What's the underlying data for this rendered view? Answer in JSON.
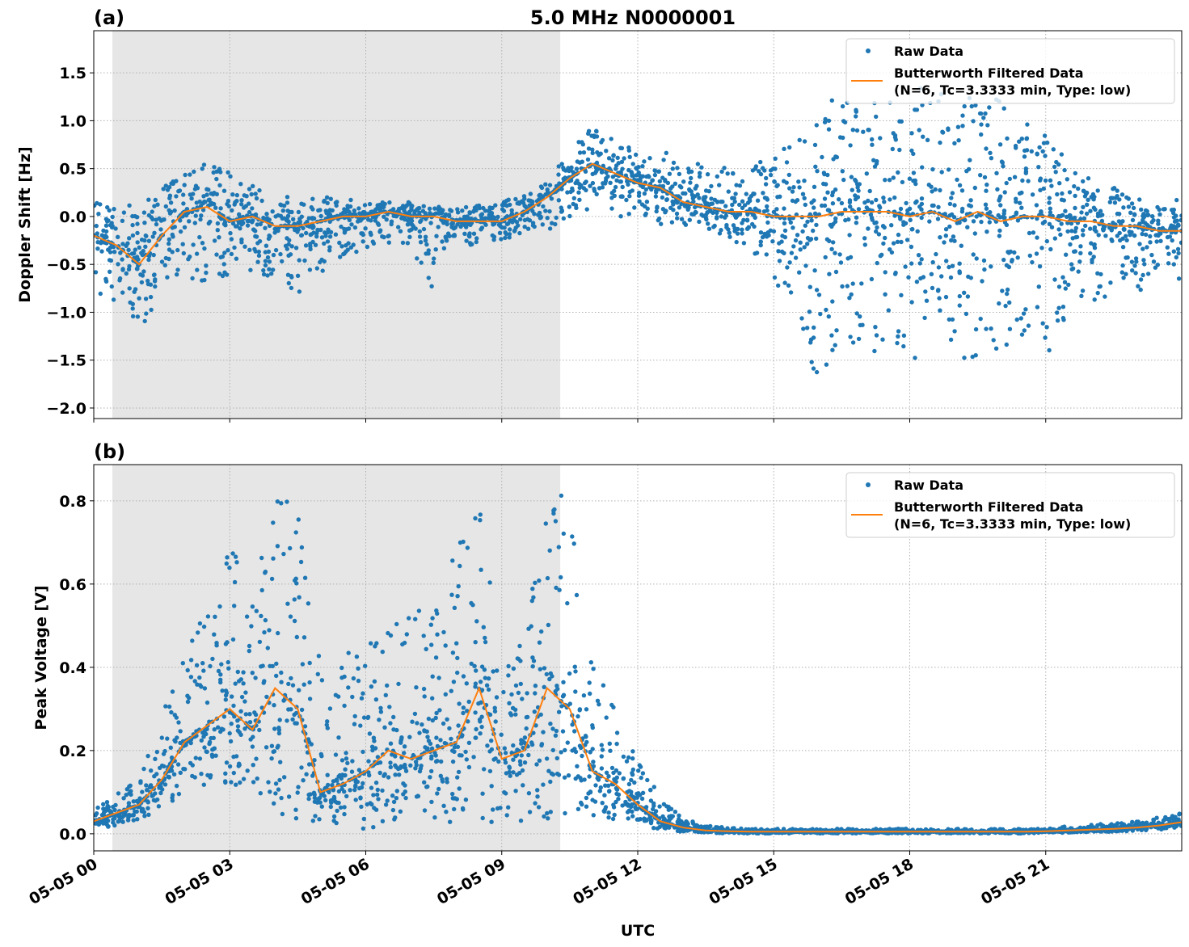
{
  "title": "5.0 MHz N0000001",
  "colors": {
    "raw": "#1f77b4",
    "filtered": "#ff7f0e",
    "shade": "#e6e6e6",
    "grid": "#b0b0b0"
  },
  "chart_data": [
    {
      "type": "scatter",
      "panel_label": "(a)",
      "ylabel": "Doppler Shift [Hz]",
      "xlabel": "",
      "xlim_hours": [
        0,
        24
      ],
      "ylim": [
        -2.11,
        1.94
      ],
      "yticks": [
        -2.0,
        -1.5,
        -1.0,
        -0.5,
        0.0,
        0.5,
        1.0,
        1.5
      ],
      "ytick_labels": [
        "−2.0",
        "−1.5",
        "−1.0",
        "−0.5",
        "0.0",
        "0.5",
        "1.0",
        "1.5"
      ],
      "grid": true,
      "shaded_interval_hours": [
        0.41,
        10.29
      ],
      "legend": {
        "placement": "top-right",
        "entries": [
          "Raw Data",
          "Butterworth Filtered Data",
          "(N=6, Tc=3.3333 min, Type: low)"
        ]
      },
      "x_hours": [
        0,
        0.5,
        1,
        1.5,
        2,
        2.5,
        3,
        3.5,
        4,
        4.5,
        5,
        5.5,
        6,
        6.5,
        7,
        7.5,
        8,
        8.5,
        9,
        9.5,
        10,
        10.5,
        11,
        11.5,
        12,
        12.5,
        13,
        13.5,
        14,
        14.5,
        15,
        15.5,
        16,
        16.5,
        17,
        17.5,
        18,
        18.5,
        19,
        19.5,
        20,
        20.5,
        21,
        21.5,
        22,
        22.5,
        23,
        23.5,
        24
      ],
      "series": [
        {
          "name": "Butterworth Filtered Data",
          "values": [
            -0.2,
            -0.3,
            -0.5,
            -0.2,
            0.05,
            0.1,
            -0.05,
            0.0,
            -0.1,
            -0.1,
            -0.05,
            0.0,
            0.0,
            0.05,
            0.0,
            0.0,
            -0.05,
            -0.05,
            -0.05,
            0.05,
            0.2,
            0.4,
            0.55,
            0.45,
            0.35,
            0.3,
            0.15,
            0.1,
            0.05,
            0.05,
            0.0,
            0.0,
            0.0,
            0.05,
            0.05,
            0.05,
            0.0,
            0.05,
            -0.05,
            0.05,
            -0.05,
            0.0,
            0.0,
            -0.05,
            -0.05,
            -0.1,
            -0.1,
            -0.15,
            -0.15
          ]
        },
        {
          "name": "Raw Data",
          "low": [
            -0.8,
            -0.9,
            -1.15,
            -0.95,
            -0.6,
            -0.8,
            -0.7,
            -0.6,
            -0.65,
            -0.8,
            -0.6,
            -0.4,
            -0.35,
            -0.3,
            -0.3,
            -0.85,
            -0.3,
            -0.3,
            -0.25,
            -0.2,
            -0.15,
            0.0,
            0.05,
            0.0,
            -0.05,
            -0.1,
            -0.1,
            -0.15,
            -0.2,
            -0.4,
            -0.7,
            -0.9,
            -1.9,
            -1.2,
            -1.5,
            -1.3,
            -1.5,
            -1.4,
            -1.5,
            -1.8,
            -1.4,
            -1.3,
            -1.5,
            -1.0,
            -0.9,
            -0.8,
            -0.8,
            -0.65,
            -0.65
          ],
          "high": [
            0.15,
            0.1,
            0.15,
            0.35,
            0.45,
            0.6,
            0.45,
            0.35,
            0.3,
            0.25,
            0.2,
            0.2,
            0.15,
            0.15,
            0.15,
            0.1,
            0.12,
            0.15,
            0.15,
            0.25,
            0.35,
            0.75,
            0.95,
            0.8,
            0.7,
            0.7,
            0.6,
            0.55,
            0.5,
            0.5,
            0.7,
            0.8,
            1.0,
            1.4,
            1.3,
            1.2,
            1.3,
            1.6,
            1.3,
            1.4,
            1.2,
            1.0,
            1.0,
            0.5,
            0.4,
            0.3,
            0.25,
            0.2,
            0.2
          ]
        }
      ]
    },
    {
      "type": "scatter",
      "panel_label": "(b)",
      "ylabel": "Peak Voltage [V]",
      "xlabel": "UTC",
      "xlim_hours": [
        0,
        24
      ],
      "ylim": [
        -0.041,
        0.887
      ],
      "yticks": [
        0.0,
        0.2,
        0.4,
        0.6,
        0.8
      ],
      "ytick_labels": [
        "0.0",
        "0.2",
        "0.4",
        "0.6",
        "0.8"
      ],
      "xticks_hours": [
        0,
        3,
        6,
        9,
        12,
        15,
        18,
        21
      ],
      "xtick_labels": [
        "05-05 00",
        "05-05 03",
        "05-05 06",
        "05-05 09",
        "05-05 12",
        "05-05 15",
        "05-05 18",
        "05-05 21"
      ],
      "grid": true,
      "shaded_interval_hours": [
        0.41,
        10.29
      ],
      "legend": {
        "placement": "top-right",
        "entries": [
          "Raw Data",
          "Butterworth Filtered Data",
          "(N=6, Tc=3.3333 min, Type: low)"
        ]
      },
      "x_hours": [
        0,
        0.5,
        1,
        1.5,
        2,
        2.5,
        3,
        3.5,
        4,
        4.5,
        5,
        5.5,
        6,
        6.5,
        7,
        7.5,
        8,
        8.5,
        9,
        9.5,
        10,
        10.5,
        11,
        11.5,
        12,
        12.5,
        13,
        13.5,
        14,
        14.5,
        15,
        15.5,
        16,
        16.5,
        17,
        17.5,
        18,
        18.5,
        19,
        19.5,
        20,
        20.5,
        21,
        21.5,
        22,
        22.5,
        23,
        23.5,
        24
      ],
      "series": [
        {
          "name": "Butterworth Filtered Data",
          "values": [
            0.03,
            0.05,
            0.07,
            0.13,
            0.22,
            0.26,
            0.3,
            0.25,
            0.35,
            0.3,
            0.1,
            0.12,
            0.15,
            0.2,
            0.18,
            0.2,
            0.22,
            0.35,
            0.18,
            0.2,
            0.35,
            0.3,
            0.15,
            0.12,
            0.07,
            0.03,
            0.015,
            0.008,
            0.006,
            0.005,
            0.005,
            0.005,
            0.005,
            0.005,
            0.005,
            0.005,
            0.005,
            0.005,
            0.005,
            0.005,
            0.005,
            0.005,
            0.006,
            0.008,
            0.01,
            0.012,
            0.015,
            0.02,
            0.028
          ]
        },
        {
          "name": "Raw Data",
          "low": [
            0.01,
            0.02,
            0.03,
            0.06,
            0.1,
            0.12,
            0.12,
            0.1,
            0.05,
            0.03,
            0.02,
            0.01,
            0.01,
            0.02,
            0.02,
            0.03,
            0.02,
            0.03,
            0.02,
            0.03,
            0.03,
            0.04,
            0.04,
            0.03,
            0.02,
            0.01,
            0.005,
            0.002,
            0.001,
            0.001,
            0.001,
            0.001,
            0.001,
            0.001,
            0.001,
            0.001,
            0.001,
            0.001,
            0.001,
            0.001,
            0.001,
            0.001,
            0.002,
            0.003,
            0.004,
            0.005,
            0.007,
            0.01,
            0.015
          ],
          "high": [
            0.07,
            0.1,
            0.13,
            0.3,
            0.48,
            0.52,
            0.74,
            0.55,
            0.83,
            0.8,
            0.4,
            0.43,
            0.5,
            0.5,
            0.56,
            0.52,
            0.75,
            0.84,
            0.4,
            0.5,
            0.84,
            0.8,
            0.42,
            0.3,
            0.2,
            0.08,
            0.04,
            0.02,
            0.015,
            0.012,
            0.012,
            0.012,
            0.012,
            0.012,
            0.012,
            0.012,
            0.012,
            0.012,
            0.012,
            0.012,
            0.012,
            0.012,
            0.014,
            0.018,
            0.022,
            0.025,
            0.03,
            0.04,
            0.05
          ]
        }
      ]
    }
  ]
}
